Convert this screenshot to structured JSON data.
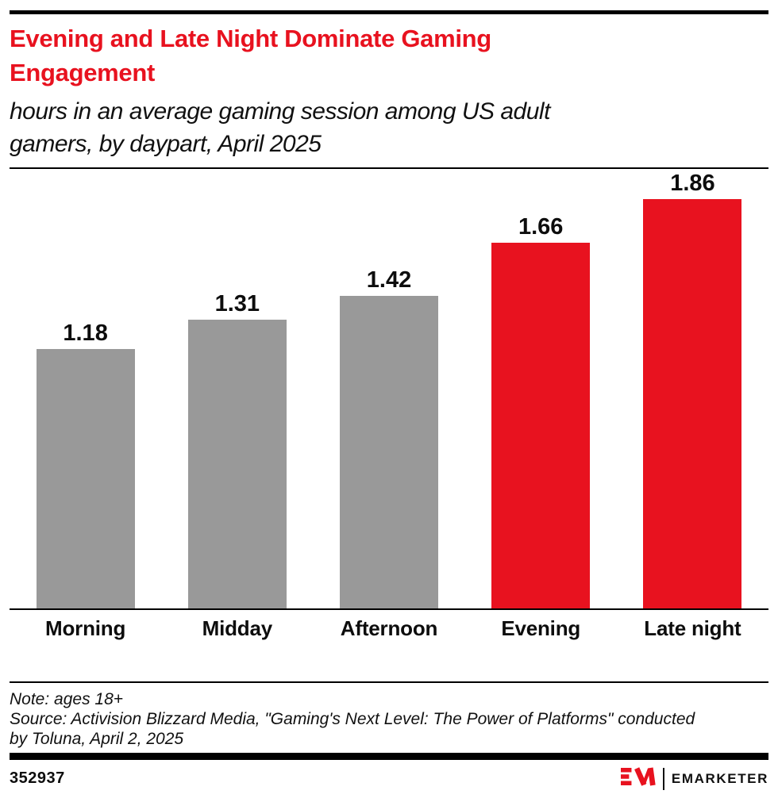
{
  "header": {
    "title_lines": [
      "Evening and Late Night Dominate Gaming",
      "Engagement"
    ],
    "subtitle_lines": [
      "hours in an average gaming session among US adult",
      "gamers, by daypart, April 2025"
    ],
    "title_color": "#e8121f"
  },
  "chart_data": {
    "type": "bar",
    "title": "Evening and Late Night Dominate Gaming Engagement",
    "subtitle": "hours in an average gaming session among US adult gamers, by daypart, April 2025",
    "categories": [
      "Morning",
      "Midday",
      "Afternoon",
      "Evening",
      "Late night"
    ],
    "values": [
      1.18,
      1.31,
      1.42,
      1.66,
      1.86
    ],
    "value_labels": [
      "1.18",
      "1.31",
      "1.42",
      "1.66",
      "1.86"
    ],
    "bar_colors": [
      "#999999",
      "#999999",
      "#999999",
      "#e8121f",
      "#e8121f"
    ],
    "unit": "hours",
    "ylim": [
      0,
      2
    ],
    "grid": false,
    "legend": "none",
    "highlight_color": "#e8121f",
    "base_color": "#999999"
  },
  "notes": {
    "note_line": "Note: ages 18+",
    "source_lines": [
      "Source: Activision Blizzard Media, \"Gaming's Next Level: The Power of Platforms\" conducted",
      "by Toluna, April 2, 2025"
    ]
  },
  "footer": {
    "chart_id": "352937",
    "brand": "EMARKETER",
    "brand_color": "#e8121f"
  }
}
